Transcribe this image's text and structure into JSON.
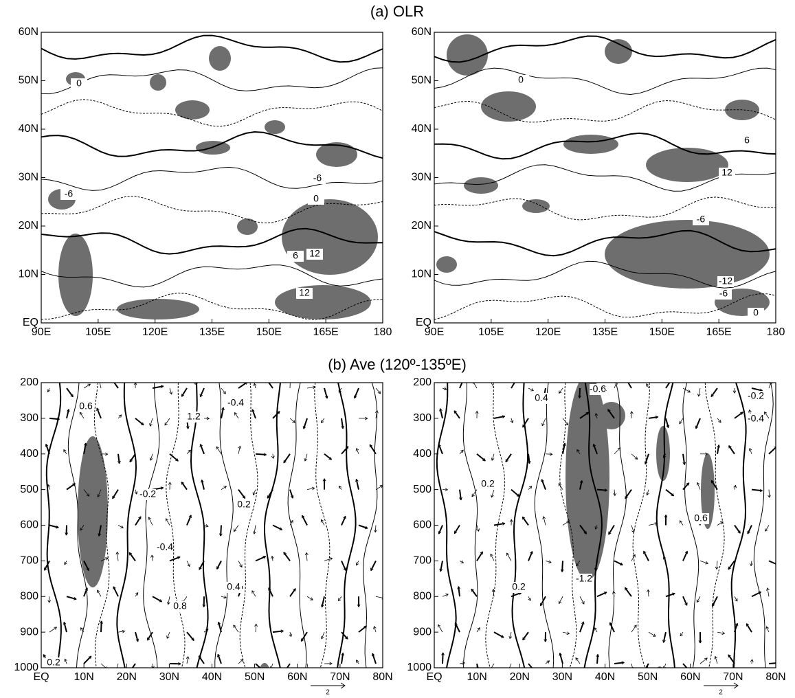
{
  "figure": {
    "panel_a": {
      "title": "(a) OLR",
      "x_labels": [
        "90E",
        "105E",
        "120E",
        "135E",
        "150E",
        "165E",
        "180"
      ],
      "y_labels": [
        "EQ",
        "10N",
        "20N",
        "30N",
        "40N",
        "50N",
        "60N"
      ],
      "left_contour_labels": [
        "0",
        "0",
        "-6",
        "-6",
        "6",
        "12",
        "12"
      ],
      "right_contour_labels": [
        "0",
        "6",
        "12",
        "-6",
        "-12",
        "-6",
        "0"
      ]
    },
    "panel_b": {
      "title": "(b) Ave (120º-135ºE)",
      "x_labels": [
        "EQ",
        "10N",
        "20N",
        "30N",
        "40N",
        "50N",
        "60N",
        "70N",
        "80N"
      ],
      "y_labels": [
        "200",
        "300",
        "400",
        "500",
        "600",
        "700",
        "800",
        "900",
        "1000"
      ],
      "left_contour_labels": [
        "0.6",
        "1.2",
        "-0.4",
        "-0.2",
        "0.2",
        "-0.4",
        "0.4",
        "0.8",
        "0.2"
      ],
      "right_contour_labels": [
        "0.4",
        "-0.6",
        "0.2",
        "0.2",
        "-1.2",
        "0.6",
        "-0.2",
        "-0.4"
      ],
      "vector_scale": "2"
    }
  }
}
